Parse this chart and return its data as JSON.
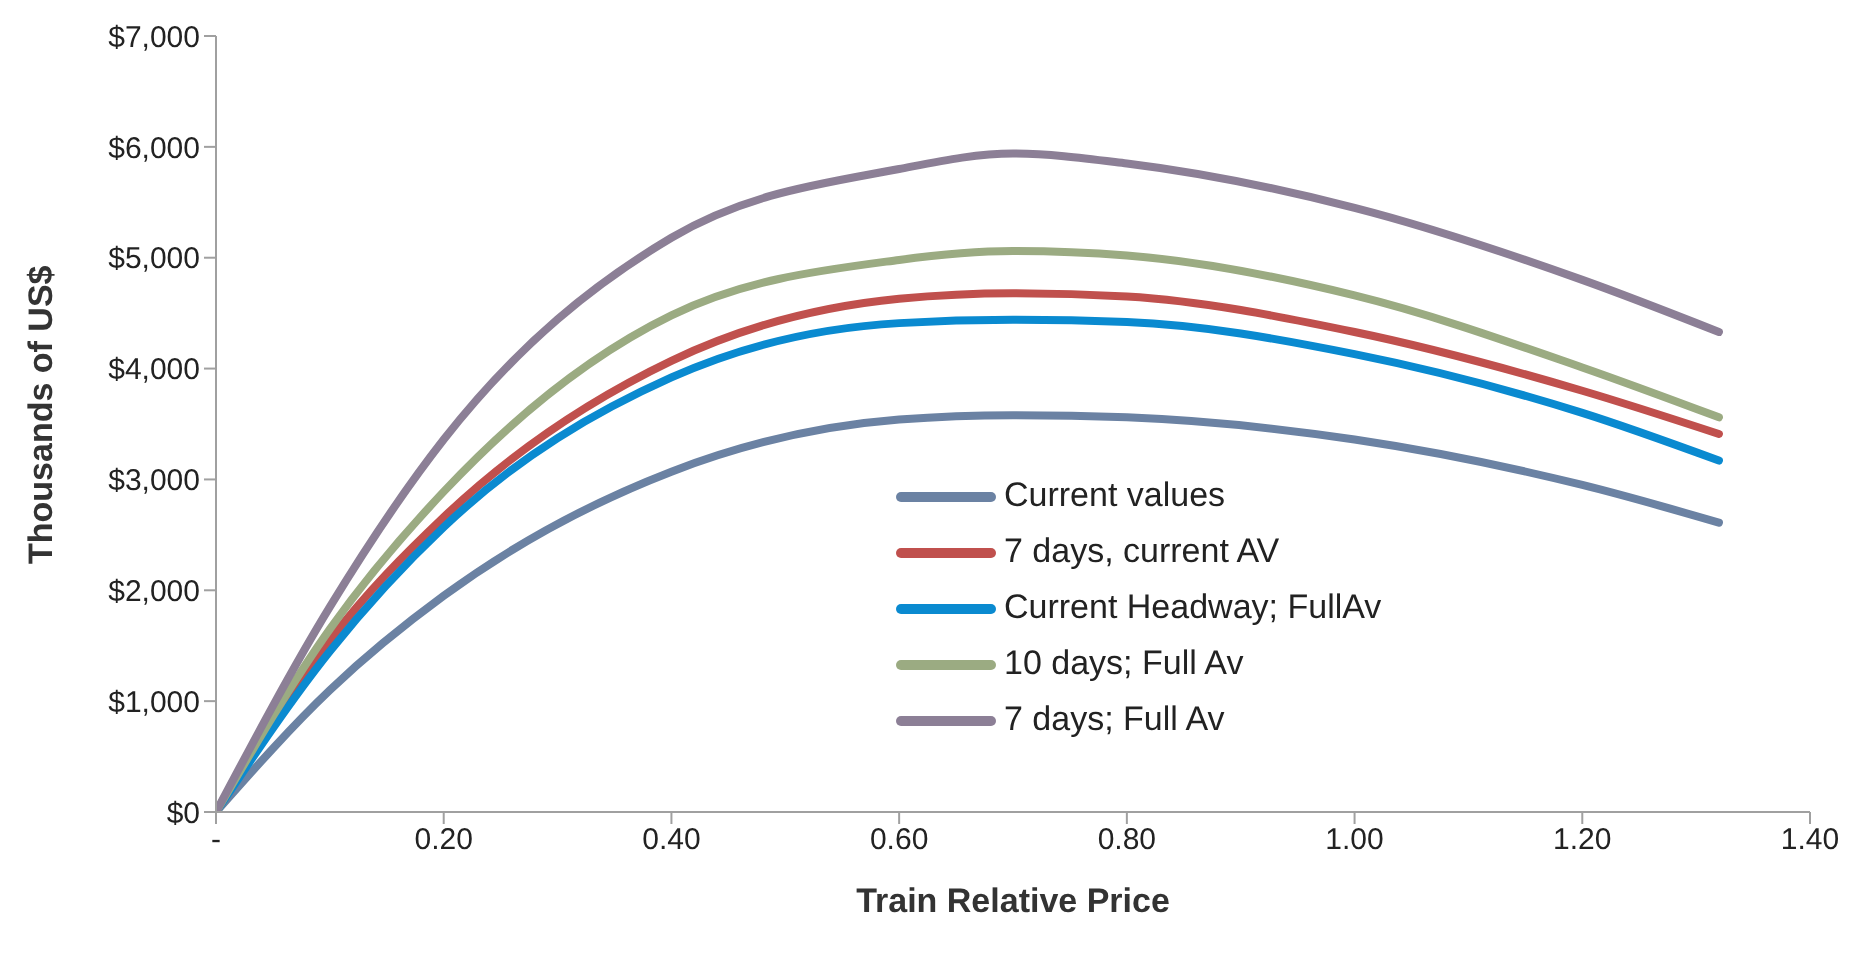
{
  "chart_data": {
    "type": "line",
    "xlabel": "Train Relative Price",
    "ylabel": "Thousands of US$",
    "x": [
      0,
      0.1,
      0.2,
      0.4,
      0.6,
      0.7,
      0.8,
      1.0,
      1.2,
      1.32
    ],
    "series": [
      {
        "name": "Current values",
        "color": "#6b82a3",
        "values": [
          0,
          1100,
          1950,
          3070,
          3540,
          3580,
          3560,
          3360,
          2950,
          2610
        ]
      },
      {
        "name": "7 days, current AV",
        "color": "#c0504d",
        "values": [
          0,
          1550,
          2660,
          4070,
          4630,
          4680,
          4650,
          4330,
          3800,
          3410
        ]
      },
      {
        "name": "Current Headway; FullAv",
        "color": "#0a8ad0",
        "values": [
          0,
          1450,
          2570,
          3920,
          4410,
          4440,
          4420,
          4130,
          3600,
          3170
        ]
      },
      {
        "name": "10 days; Full Av",
        "color": "#9bab82",
        "values": [
          0,
          1650,
          2890,
          4480,
          4980,
          5060,
          5020,
          4660,
          4010,
          3560
        ]
      },
      {
        "name": "7 days; Full Av",
        "color": "#8c7f96",
        "values": [
          0,
          1850,
          3360,
          5180,
          5800,
          5940,
          5850,
          5450,
          4800,
          4330
        ]
      }
    ],
    "xlim": [
      0,
      1.4
    ],
    "xticks": [
      {
        "value": 0,
        "label": "-"
      },
      {
        "value": 0.2,
        "label": "0.20"
      },
      {
        "value": 0.4,
        "label": "0.40"
      },
      {
        "value": 0.6,
        "label": "0.60"
      },
      {
        "value": 0.8,
        "label": "0.80"
      },
      {
        "value": 1,
        "label": "1.00"
      },
      {
        "value": 1.2,
        "label": "1.20"
      },
      {
        "value": 1.4,
        "label": "1.40"
      }
    ],
    "ylim": [
      0,
      7000
    ],
    "yticks": [
      {
        "value": 0,
        "label": "$0"
      },
      {
        "value": 1000,
        "label": "$1,000"
      },
      {
        "value": 2000,
        "label": "$2,000"
      },
      {
        "value": 3000,
        "label": "$3,000"
      },
      {
        "value": 4000,
        "label": "$4,000"
      },
      {
        "value": 5000,
        "label": "$5,000"
      },
      {
        "value": 6000,
        "label": "$6,000"
      },
      {
        "value": 7000,
        "label": "$7,000"
      }
    ],
    "grid": false,
    "legend": "bottom",
    "marker": "none",
    "line_style": "solid"
  }
}
